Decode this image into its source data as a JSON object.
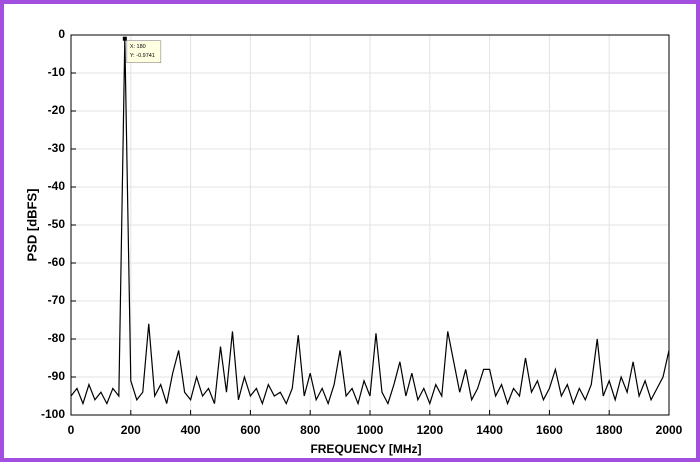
{
  "chart_data": {
    "type": "line",
    "xlabel": "FREQUENCY [MHz]",
    "ylabel": "PSD [dBFS]",
    "x": [
      0,
      20,
      40,
      60,
      80,
      100,
      120,
      140,
      160,
      180,
      200,
      220,
      240,
      260,
      280,
      300,
      320,
      340,
      360,
      380,
      400,
      420,
      440,
      460,
      480,
      500,
      520,
      540,
      560,
      580,
      600,
      620,
      640,
      660,
      680,
      700,
      720,
      740,
      760,
      780,
      800,
      820,
      840,
      860,
      880,
      900,
      920,
      940,
      960,
      980,
      1000,
      1020,
      1040,
      1060,
      1080,
      1100,
      1120,
      1140,
      1160,
      1180,
      1200,
      1220,
      1240,
      1260,
      1280,
      1300,
      1320,
      1340,
      1360,
      1380,
      1400,
      1420,
      1440,
      1460,
      1480,
      1500,
      1520,
      1540,
      1560,
      1580,
      1600,
      1620,
      1640,
      1660,
      1680,
      1700,
      1720,
      1740,
      1760,
      1780,
      1800,
      1820,
      1840,
      1860,
      1880,
      1900,
      1920,
      1940,
      1960,
      1980,
      2000
    ],
    "series": [
      {
        "color": "#000000",
        "values": [
          -95,
          -93,
          -97,
          -92,
          -96,
          -94,
          -97,
          -93,
          -95,
          -0.9741,
          -91,
          -96,
          -94,
          -76,
          -95,
          -92,
          -97,
          -89,
          -83,
          -94,
          -96,
          -90,
          -95,
          -93,
          -97,
          -82,
          -94,
          -78,
          -96,
          -90,
          -95,
          -93,
          -97,
          -92,
          -95,
          -94,
          -97,
          -93,
          -79,
          -95,
          -89,
          -96,
          -93,
          -97,
          -92,
          -83,
          -95,
          -93,
          -97,
          -91,
          -95,
          -78.5,
          -94,
          -97,
          -92,
          -86,
          -95,
          -89,
          -96,
          -93,
          -97,
          -92,
          -95,
          -78,
          -86,
          -94,
          -88,
          -96,
          -93,
          -88,
          -88,
          -95,
          -92,
          -97,
          -93,
          -95,
          -85,
          -94,
          -91,
          -96,
          -93,
          -88,
          -95,
          -92,
          -97,
          -93,
          -96,
          -92,
          -80,
          -95,
          -91,
          -96,
          -90,
          -94,
          -86,
          -95,
          -91,
          -96,
          -93,
          -90,
          -83
        ]
      }
    ],
    "xlim": [
      0,
      2000
    ],
    "ylim": [
      -100,
      0
    ],
    "xticks": [
      0,
      200,
      400,
      600,
      800,
      1000,
      1200,
      1400,
      1600,
      1800,
      2000
    ],
    "yticks": [
      0,
      -10,
      -20,
      -30,
      -40,
      -50,
      -60,
      -70,
      -80,
      -90,
      -100
    ],
    "grid": true,
    "annotation": {
      "x": 180,
      "y": -0.9741,
      "label_x": "X: 180",
      "label_y": "Y: -0.9741"
    }
  }
}
